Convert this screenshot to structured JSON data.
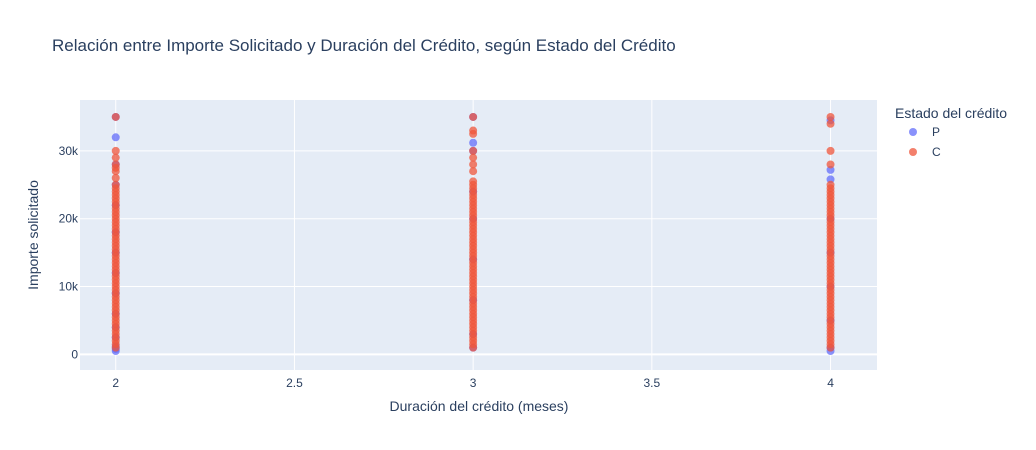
{
  "chart_data": {
    "type": "scatter",
    "title": "Relación entre Importe Solicitado y Duración del Crédito, según Estado del Crédito",
    "xlabel": "Duración del crédito (meses)",
    "ylabel": "Importe solicitado",
    "xlim": [
      1.9,
      4.13
    ],
    "ylim": [
      -2300,
      37500
    ],
    "xticks": [
      2,
      2.5,
      3,
      3.5,
      4
    ],
    "xtick_labels": [
      "2",
      "2.5",
      "3",
      "3.5",
      "4"
    ],
    "yticks": [
      0,
      10000,
      20000,
      30000
    ],
    "ytick_labels": [
      "0",
      "10k",
      "20k",
      "30k"
    ],
    "grid": true,
    "legend": {
      "title": "Estado del crédito",
      "position": "right"
    },
    "series": [
      {
        "name": "P",
        "color": "#636efa",
        "points": [
          [
            2,
            500
          ],
          [
            2,
            800
          ],
          [
            2,
            1200
          ],
          [
            2,
            2500
          ],
          [
            2,
            4000
          ],
          [
            2,
            6000
          ],
          [
            2,
            9000
          ],
          [
            2,
            12000
          ],
          [
            2,
            15000
          ],
          [
            2,
            18000
          ],
          [
            2,
            22000
          ],
          [
            2,
            25000
          ],
          [
            2,
            28000
          ],
          [
            2,
            32000
          ],
          [
            2,
            35000
          ],
          [
            3,
            1000
          ],
          [
            3,
            3000
          ],
          [
            3,
            8000
          ],
          [
            3,
            14000
          ],
          [
            3,
            20000
          ],
          [
            3,
            24000
          ],
          [
            3,
            30000
          ],
          [
            3,
            31200
          ],
          [
            3,
            35000
          ],
          [
            4,
            500
          ],
          [
            4,
            1000
          ],
          [
            4,
            5000
          ],
          [
            4,
            10000
          ],
          [
            4,
            15000
          ],
          [
            4,
            20000
          ],
          [
            4,
            25800
          ],
          [
            4,
            27200
          ],
          [
            4,
            34500
          ]
        ]
      },
      {
        "name": "C",
        "color": "#ef553b",
        "points": [
          [
            2,
            1000
          ],
          [
            2,
            1500
          ],
          [
            2,
            2000
          ],
          [
            2,
            2500
          ],
          [
            2,
            3000
          ],
          [
            2,
            3500
          ],
          [
            2,
            4000
          ],
          [
            2,
            4500
          ],
          [
            2,
            5000
          ],
          [
            2,
            5500
          ],
          [
            2,
            6000
          ],
          [
            2,
            6500
          ],
          [
            2,
            7000
          ],
          [
            2,
            7500
          ],
          [
            2,
            8000
          ],
          [
            2,
            8500
          ],
          [
            2,
            9000
          ],
          [
            2,
            9500
          ],
          [
            2,
            10000
          ],
          [
            2,
            10500
          ],
          [
            2,
            11000
          ],
          [
            2,
            11500
          ],
          [
            2,
            12000
          ],
          [
            2,
            12500
          ],
          [
            2,
            13000
          ],
          [
            2,
            13500
          ],
          [
            2,
            14000
          ],
          [
            2,
            14500
          ],
          [
            2,
            15000
          ],
          [
            2,
            15500
          ],
          [
            2,
            16000
          ],
          [
            2,
            16500
          ],
          [
            2,
            17000
          ],
          [
            2,
            17500
          ],
          [
            2,
            18000
          ],
          [
            2,
            18500
          ],
          [
            2,
            19000
          ],
          [
            2,
            19500
          ],
          [
            2,
            20000
          ],
          [
            2,
            20500
          ],
          [
            2,
            21000
          ],
          [
            2,
            21500
          ],
          [
            2,
            22000
          ],
          [
            2,
            22500
          ],
          [
            2,
            23000
          ],
          [
            2,
            23500
          ],
          [
            2,
            24000
          ],
          [
            2,
            24500
          ],
          [
            2,
            25000
          ],
          [
            2,
            26000
          ],
          [
            2,
            27000
          ],
          [
            2,
            27500
          ],
          [
            2,
            28000
          ],
          [
            2,
            29000
          ],
          [
            2,
            30000
          ],
          [
            2,
            35000
          ],
          [
            3,
            1000
          ],
          [
            3,
            1500
          ],
          [
            3,
            2000
          ],
          [
            3,
            2500
          ],
          [
            3,
            3000
          ],
          [
            3,
            3500
          ],
          [
            3,
            4000
          ],
          [
            3,
            4500
          ],
          [
            3,
            5000
          ],
          [
            3,
            5500
          ],
          [
            3,
            6000
          ],
          [
            3,
            6500
          ],
          [
            3,
            7000
          ],
          [
            3,
            7500
          ],
          [
            3,
            8000
          ],
          [
            3,
            8500
          ],
          [
            3,
            9000
          ],
          [
            3,
            9500
          ],
          [
            3,
            10000
          ],
          [
            3,
            10500
          ],
          [
            3,
            11000
          ],
          [
            3,
            11500
          ],
          [
            3,
            12000
          ],
          [
            3,
            12500
          ],
          [
            3,
            13000
          ],
          [
            3,
            13500
          ],
          [
            3,
            14000
          ],
          [
            3,
            14500
          ],
          [
            3,
            15000
          ],
          [
            3,
            15500
          ],
          [
            3,
            16000
          ],
          [
            3,
            16500
          ],
          [
            3,
            17000
          ],
          [
            3,
            17500
          ],
          [
            3,
            18000
          ],
          [
            3,
            18500
          ],
          [
            3,
            19000
          ],
          [
            3,
            19500
          ],
          [
            3,
            20000
          ],
          [
            3,
            20500
          ],
          [
            3,
            21000
          ],
          [
            3,
            21500
          ],
          [
            3,
            22000
          ],
          [
            3,
            22500
          ],
          [
            3,
            23000
          ],
          [
            3,
            23500
          ],
          [
            3,
            24000
          ],
          [
            3,
            24500
          ],
          [
            3,
            25000
          ],
          [
            3,
            25500
          ],
          [
            3,
            27000
          ],
          [
            3,
            28000
          ],
          [
            3,
            29000
          ],
          [
            3,
            30000
          ],
          [
            3,
            32500
          ],
          [
            3,
            33000
          ],
          [
            3,
            35000
          ],
          [
            4,
            1000
          ],
          [
            4,
            1500
          ],
          [
            4,
            2000
          ],
          [
            4,
            2500
          ],
          [
            4,
            3000
          ],
          [
            4,
            3500
          ],
          [
            4,
            4000
          ],
          [
            4,
            4500
          ],
          [
            4,
            5000
          ],
          [
            4,
            5500
          ],
          [
            4,
            6000
          ],
          [
            4,
            6500
          ],
          [
            4,
            7000
          ],
          [
            4,
            7500
          ],
          [
            4,
            8000
          ],
          [
            4,
            8500
          ],
          [
            4,
            9000
          ],
          [
            4,
            9500
          ],
          [
            4,
            10000
          ],
          [
            4,
            10500
          ],
          [
            4,
            11000
          ],
          [
            4,
            11500
          ],
          [
            4,
            12000
          ],
          [
            4,
            12500
          ],
          [
            4,
            13000
          ],
          [
            4,
            13500
          ],
          [
            4,
            14000
          ],
          [
            4,
            14500
          ],
          [
            4,
            15000
          ],
          [
            4,
            15500
          ],
          [
            4,
            16000
          ],
          [
            4,
            16500
          ],
          [
            4,
            17000
          ],
          [
            4,
            17500
          ],
          [
            4,
            18000
          ],
          [
            4,
            18500
          ],
          [
            4,
            19000
          ],
          [
            4,
            19500
          ],
          [
            4,
            20000
          ],
          [
            4,
            20500
          ],
          [
            4,
            21000
          ],
          [
            4,
            21500
          ],
          [
            4,
            22000
          ],
          [
            4,
            22500
          ],
          [
            4,
            23000
          ],
          [
            4,
            23500
          ],
          [
            4,
            24000
          ],
          [
            4,
            24500
          ],
          [
            4,
            25000
          ],
          [
            4,
            28000
          ],
          [
            4,
            30000
          ],
          [
            4,
            34000
          ],
          [
            4,
            35000
          ]
        ]
      }
    ]
  }
}
